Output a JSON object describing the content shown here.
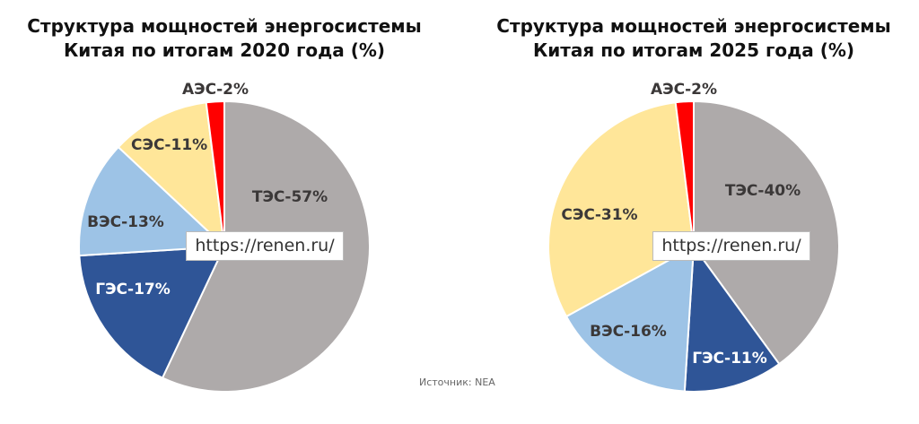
{
  "chart_data": [
    {
      "type": "pie",
      "title": "Структура мощностей энергосистемы Китая по итогам 2020 года (%)",
      "values": [
        57,
        17,
        13,
        11,
        2
      ],
      "value_labels": [
        "ТЭС-57%",
        "ГЭС-17%",
        "ВЭС-13%",
        "СЭС-11%",
        "АЭС-2%"
      ],
      "colors": [
        "#aeaaaa",
        "#2f5597",
        "#9dc3e6",
        "#ffe699",
        "#ff0000"
      ],
      "annotation": "https://renen.ru/"
    },
    {
      "type": "pie",
      "title": "Структура мощностей энергосистемы Китая по итогам 2025 года (%)",
      "values": [
        40,
        11,
        16,
        31,
        2
      ],
      "value_labels": [
        "ТЭС-40%",
        "ГЭС-11%",
        "ВЭС-16%",
        "СЭС-31%",
        "АЭС-2%"
      ],
      "colors": [
        "#aeaaaa",
        "#2f5597",
        "#9dc3e6",
        "#ffe699",
        "#ff0000"
      ],
      "annotation": "https://renen.ru/"
    }
  ],
  "source": "Источник: NEA"
}
